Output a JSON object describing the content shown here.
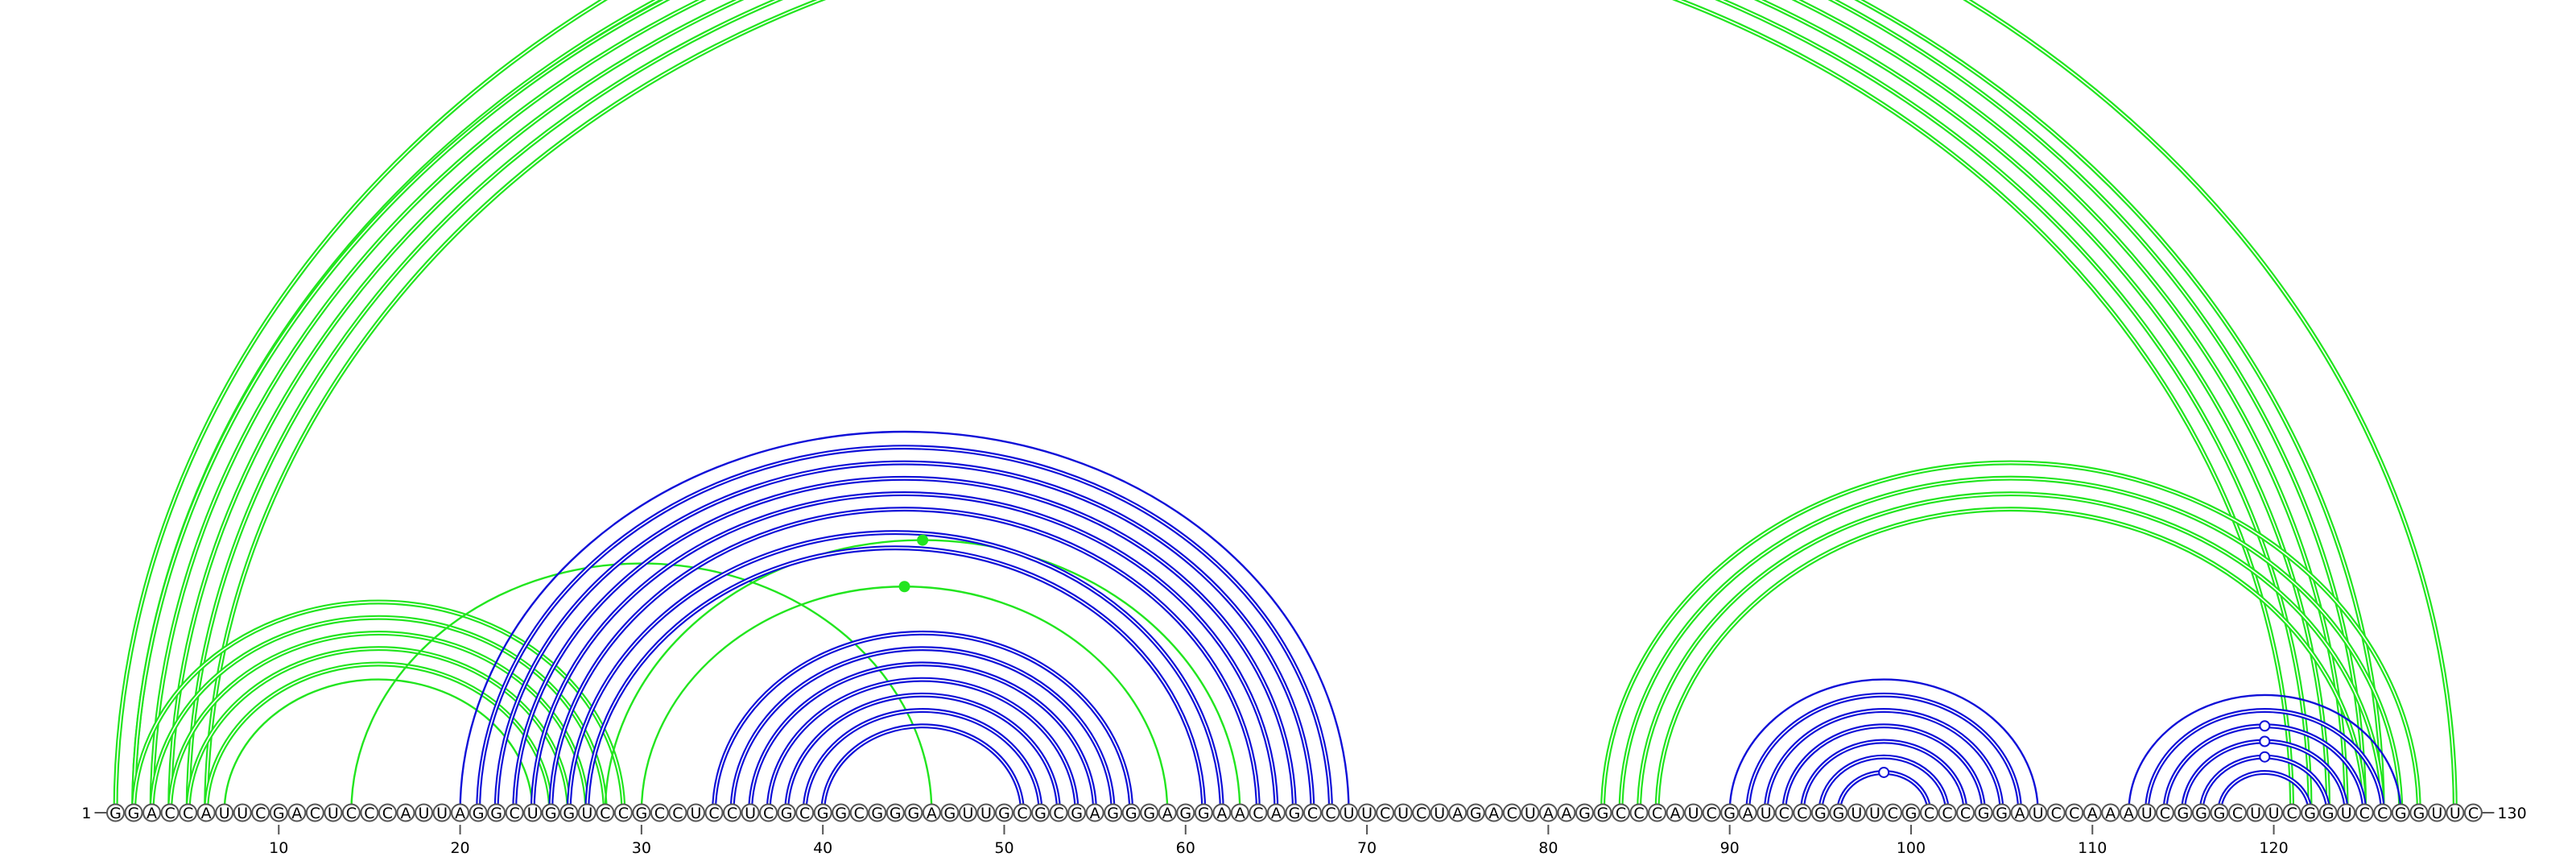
{
  "sequence": "GGACCAUUCGACUCCCAUUAGGCUGGUCCGCCUCCUCGCGGCGGGAGUUGCGCGAGGGAGGAACAGCCUUCUCUAGACUAAGGCCCAUCGAUCCGGUUCGCCCGGAUCCAAAUCGGGCUUCGGUCCGGUUC",
  "labels": {
    "start": "1",
    "end": "130",
    "ticks": [
      "10",
      "20",
      "30",
      "40",
      "50",
      "60",
      "70",
      "80",
      "90",
      "100",
      "110",
      "120"
    ]
  },
  "colors": {
    "green": "#22e51f",
    "blue": "#1010d8"
  },
  "arcs": [
    {
      "i": 1,
      "j": 130,
      "color": "green",
      "double": true
    },
    {
      "i": 2,
      "j": 126,
      "color": "green",
      "double": true
    },
    {
      "i": 2,
      "j": 125,
      "color": "green",
      "double": true
    },
    {
      "i": 3,
      "j": 124,
      "color": "green",
      "double": true
    },
    {
      "i": 4,
      "j": 123,
      "color": "green",
      "double": true
    },
    {
      "i": 5,
      "j": 122,
      "color": "green",
      "double": true
    },
    {
      "i": 6,
      "j": 121,
      "color": "green",
      "double": true
    },
    {
      "i": 2,
      "j": 29,
      "color": "green",
      "double": true
    },
    {
      "i": 3,
      "j": 28,
      "color": "green",
      "double": true
    },
    {
      "i": 4,
      "j": 27,
      "color": "green",
      "double": true
    },
    {
      "i": 5,
      "j": 26,
      "color": "green",
      "double": true
    },
    {
      "i": 6,
      "j": 25,
      "color": "green",
      "double": true
    },
    {
      "i": 7,
      "j": 24,
      "color": "green",
      "double": false
    },
    {
      "i": 14,
      "j": 46,
      "color": "green",
      "double": false
    },
    {
      "i": 28,
      "j": 63,
      "color": "green",
      "double": false
    },
    {
      "i": 30,
      "j": 59,
      "color": "green",
      "double": false
    },
    {
      "i": 20,
      "j": 69,
      "color": "blue",
      "double": false
    },
    {
      "i": 21,
      "j": 68,
      "color": "blue",
      "double": true
    },
    {
      "i": 22,
      "j": 67,
      "color": "blue",
      "double": true
    },
    {
      "i": 23,
      "j": 66,
      "color": "blue",
      "double": true
    },
    {
      "i": 24,
      "j": 65,
      "color": "blue",
      "double": true
    },
    {
      "i": 25,
      "j": 64,
      "color": "blue",
      "double": true
    },
    {
      "i": 26,
      "j": 62,
      "color": "blue",
      "double": true
    },
    {
      "i": 27,
      "j": 61,
      "color": "blue",
      "double": true
    },
    {
      "i": 34,
      "j": 57,
      "color": "blue",
      "double": true
    },
    {
      "i": 35,
      "j": 56,
      "color": "blue",
      "double": true
    },
    {
      "i": 36,
      "j": 55,
      "color": "blue",
      "double": true
    },
    {
      "i": 37,
      "j": 54,
      "color": "blue",
      "double": true
    },
    {
      "i": 38,
      "j": 53,
      "color": "blue",
      "double": true
    },
    {
      "i": 39,
      "j": 52,
      "color": "blue",
      "double": true
    },
    {
      "i": 40,
      "j": 51,
      "color": "blue",
      "double": true
    },
    {
      "i": 83,
      "j": 128,
      "color": "green",
      "double": true
    },
    {
      "i": 84,
      "j": 127,
      "color": "green",
      "double": true
    },
    {
      "i": 85,
      "j": 126,
      "color": "green",
      "double": true
    },
    {
      "i": 86,
      "j": 125,
      "color": "green",
      "double": true
    },
    {
      "i": 90,
      "j": 107,
      "color": "blue",
      "double": false
    },
    {
      "i": 91,
      "j": 106,
      "color": "blue",
      "double": true
    },
    {
      "i": 92,
      "j": 105,
      "color": "blue",
      "double": true
    },
    {
      "i": 93,
      "j": 104,
      "color": "blue",
      "double": true
    },
    {
      "i": 94,
      "j": 103,
      "color": "blue",
      "double": true
    },
    {
      "i": 95,
      "j": 102,
      "color": "blue",
      "double": true
    },
    {
      "i": 96,
      "j": 101,
      "color": "blue",
      "double": true
    },
    {
      "i": 112,
      "j": 127,
      "color": "blue",
      "double": false
    },
    {
      "i": 113,
      "j": 126,
      "color": "blue",
      "double": true
    },
    {
      "i": 114,
      "j": 125,
      "color": "blue",
      "double": true
    },
    {
      "i": 115,
      "j": 124,
      "color": "blue",
      "double": true
    },
    {
      "i": 116,
      "j": 123,
      "color": "blue",
      "double": true
    },
    {
      "i": 117,
      "j": 122,
      "color": "blue",
      "double": true
    }
  ],
  "markers": [
    {
      "arc": 0,
      "filled": false
    },
    {
      "arc": 14,
      "filled": true
    },
    {
      "arc": 15,
      "filled": true
    },
    {
      "arc": 41,
      "filled": false
    },
    {
      "arc": 44,
      "filled": false
    },
    {
      "arc": 45,
      "filled": false
    },
    {
      "arc": 46,
      "filled": false
    }
  ]
}
